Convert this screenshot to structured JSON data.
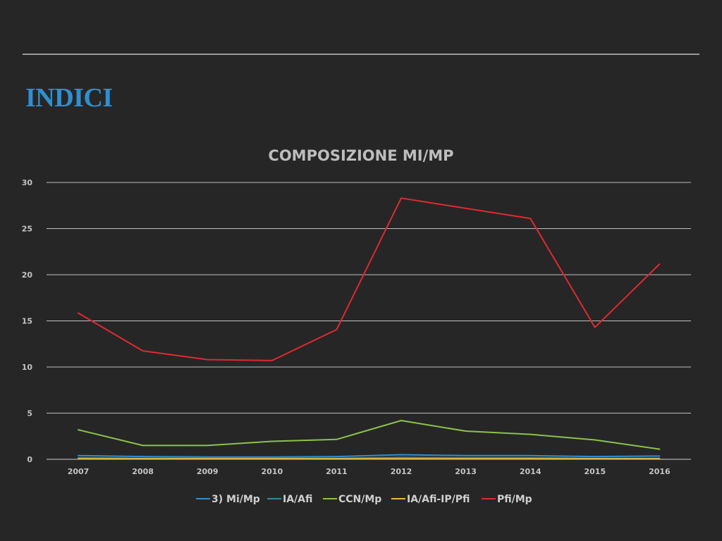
{
  "slide": {
    "title": "INDICI",
    "title_color": "#2f8fd0"
  },
  "chart_data": {
    "type": "line",
    "title": "COMPOSIZIONE MI/MP",
    "xlabel": "",
    "ylabel": "",
    "x": [
      "2007",
      "2008",
      "2009",
      "2010",
      "2011",
      "2012",
      "2013",
      "2014",
      "2015",
      "2016"
    ],
    "ylim": [
      0,
      30
    ],
    "yticks": [
      0,
      5,
      10,
      15,
      20,
      25,
      30
    ],
    "grid": true,
    "legend_position": "bottom",
    "series": [
      {
        "name": "3) Mi/Mp",
        "color": "#2d8fd5",
        "values": [
          0.4,
          0.3,
          0.25,
          0.25,
          0.3,
          0.5,
          0.4,
          0.4,
          0.3,
          0.35
        ]
      },
      {
        "name": "IA/Afi",
        "color": "#2e8aa8",
        "values": [
          0.15,
          0.1,
          0.1,
          0.1,
          0.1,
          0.2,
          0.15,
          0.15,
          0.1,
          0.1
        ]
      },
      {
        "name": "CCN/Mp",
        "color": "#8bc34a",
        "values": [
          3.2,
          1.5,
          1.5,
          1.95,
          2.15,
          4.2,
          3.05,
          2.7,
          2.1,
          1.1
        ]
      },
      {
        "name": "IA/Afi-IP/Pfi",
        "color": "#f2b731",
        "values": [
          0.05,
          0.05,
          0.05,
          0.05,
          0.05,
          0.05,
          0.05,
          0.05,
          0.05,
          0.05
        ]
      },
      {
        "name": "Pfi/Mp",
        "color": "#e0292f",
        "values": [
          15.85,
          11.75,
          10.8,
          10.7,
          14.05,
          28.3,
          27.2,
          26.1,
          14.3,
          21.15
        ]
      }
    ]
  }
}
